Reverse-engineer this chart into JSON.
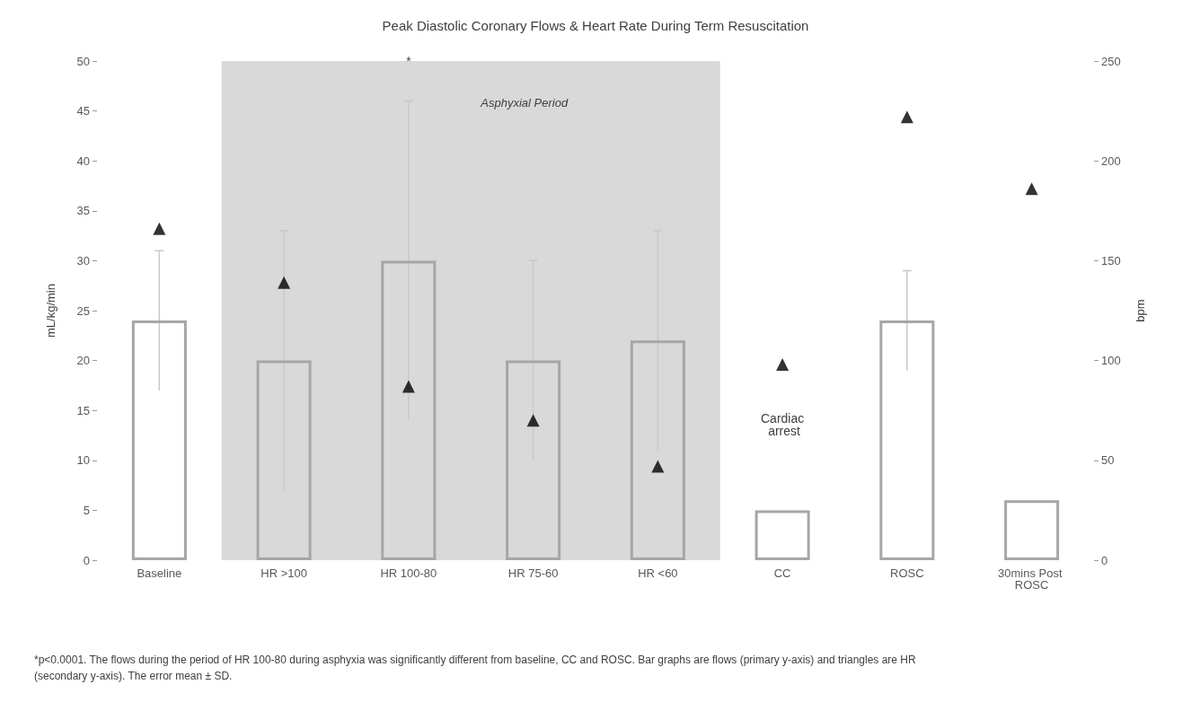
{
  "chart_data": {
    "type": "bar",
    "title": "Peak Diastolic Coronary Flows & Heart Rate During Term Resuscitation",
    "categories": [
      "Baseline",
      "HR >100",
      "HR 100-80",
      "HR 75-60",
      "HR <60",
      "CC",
      "ROSC",
      "30mins Post ROSC"
    ],
    "series": [
      {
        "color": "#a6a6a6",
        "values": [
          24,
          20,
          30,
          20,
          22,
          5,
          24,
          6
        ],
        "errors": [
          7,
          13,
          16,
          10,
          11,
          null,
          5,
          null
        ]
      },
      {
        "type": "scatter",
        "axis": "y2",
        "color": "#000000",
        "marker": "triangle",
        "values": [
          166,
          139,
          87,
          70,
          47,
          98,
          222,
          186
        ]
      }
    ],
    "ylabel": "mL/kg/min",
    "y2label": "bpm",
    "ylim": [
      0,
      50
    ],
    "yticks": [
      0,
      5,
      10,
      15,
      20,
      25,
      30,
      35,
      40,
      45,
      50
    ],
    "y2lim": [
      0,
      250
    ],
    "y2ticks": [
      0,
      50,
      100,
      150,
      200,
      250
    ],
    "bands": [
      {
        "axis": "x",
        "from": "HR >100",
        "to": "HR <60",
        "label": "Asphyxial Period",
        "color": "#d9d9d9"
      }
    ],
    "annotations": [
      {
        "text": "*",
        "x": "HR 100-80",
        "y": 50
      },
      "Cardiac arrest",
      "*p<0.0001. The flows during the period of HR 100-80 during asphyxia was significantly different from baseline, CC and ROSC. Bar graphs are flows (primary y-axis) and triangles are HR (secondary y-axis). The error mean ± SD."
    ],
    "grid": false
  }
}
